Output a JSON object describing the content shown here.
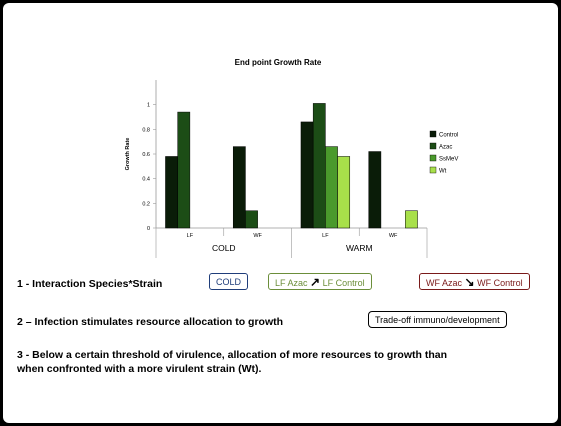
{
  "chart_data": {
    "type": "bar",
    "title": "End point Growth Rate",
    "xlabel": "",
    "ylabel": "Growth Rate",
    "ylim": [
      0,
      1.2
    ],
    "yticks": [
      "0",
      "0.2",
      "0.4",
      "0.6",
      "0.8",
      "1"
    ],
    "categories": [
      "LF",
      "WF",
      "LF",
      "WF"
    ],
    "groups": [
      "COLD",
      "WARM"
    ],
    "series": [
      {
        "name": "Control",
        "color": "#0a1c08",
        "values": [
          0.58,
          0.66,
          0.86,
          0.62
        ]
      },
      {
        "name": "Azac",
        "color": "#1c4d16",
        "values": [
          0.94,
          0.14,
          1.01,
          0
        ]
      },
      {
        "name": "SsMeV",
        "color": "#4a9a2c",
        "values": [
          0,
          0,
          0.66,
          0
        ]
      },
      {
        "name": "Wt",
        "color": "#a8e04a",
        "values": [
          0,
          0,
          0.58,
          0.14
        ]
      }
    ],
    "legend_position": "right",
    "grid": false
  },
  "points": [
    "1 - Interaction Species*Strain",
    "2 – Infection stimulates resource allocation to growth",
    "3 - Below a certain threshold of virulence, allocation of more resources to growth than",
    "when confronted with a more virulent strain (Wt)."
  ],
  "badges": {
    "cold": {
      "text": "COLD",
      "color": "#1f3d7a"
    },
    "lf": {
      "left": "LF Azac",
      "arrow": "↗",
      "right": "LF Control",
      "color": "#6b8e3a"
    },
    "wf": {
      "left": "WF Azac",
      "arrow": "↘",
      "right": "WF Control",
      "color": "#7a1a1a"
    },
    "tradeoff": {
      "text": "Trade-off immuno/development",
      "color": "#000000"
    }
  }
}
